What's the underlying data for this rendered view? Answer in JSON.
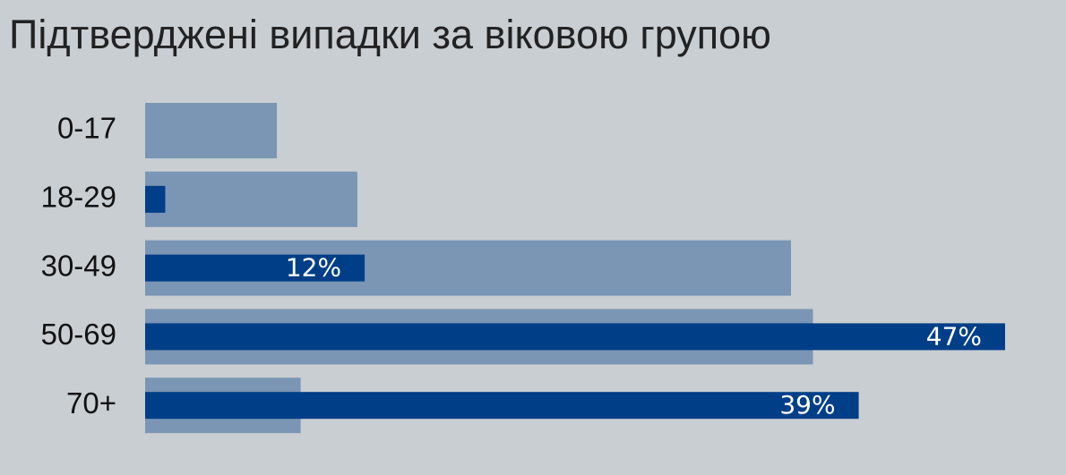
{
  "chart_data": {
    "type": "overlaid-bar",
    "title": "Підтверджені випадки за віковою групою",
    "categories": [
      "0-17",
      "18-29",
      "30-49",
      "50-69",
      "70+"
    ],
    "series": [
      {
        "color": "#7b96b4",
        "values": [
          7.2,
          11.6,
          35.3,
          36.5,
          8.5
        ]
      },
      {
        "color": "#003f87",
        "values": [
          0,
          1.1,
          12,
          47,
          39
        ],
        "value_labels": [
          null,
          null,
          "12%",
          "47%",
          "39%"
        ]
      }
    ]
  }
}
